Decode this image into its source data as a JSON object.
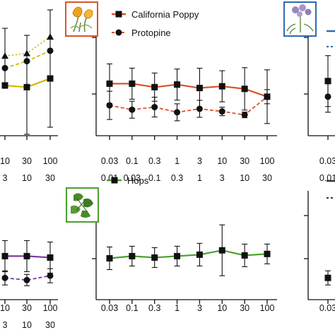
{
  "chart_data": [
    {
      "type": "line",
      "panel": "top-left (cropped)",
      "x_tick_rows": [
        [
          "10",
          "30",
          "100"
        ],
        [
          "3",
          "10",
          "30"
        ]
      ],
      "x": [
        10,
        30,
        100
      ],
      "series": [
        {
          "name": "",
          "color": "#d4b800",
          "style": "solid",
          "marker": "square",
          "values": [
            0.58,
            0.56,
            0.66
          ]
        },
        {
          "name": "",
          "color": "#d4b800",
          "style": "dashed",
          "marker": "circle",
          "values": [
            0.78,
            0.86,
            0.98
          ]
        },
        {
          "name": "",
          "color": "#d4b800",
          "style": "dotted",
          "marker": "triangle",
          "values": [
            0.92,
            0.95,
            1.14
          ]
        }
      ],
      "ylim": [
        0,
        1.5
      ]
    },
    {
      "type": "line",
      "panel": "top-center",
      "legend": [
        "California Poppy",
        "Protopine"
      ],
      "legend_placement": "top",
      "x_tick_rows": [
        [
          "0.03",
          "0.1",
          "0.3",
          "1",
          "3",
          "10",
          "30",
          "100"
        ],
        [
          "0.01",
          "0.03",
          "0.1",
          "0.3",
          "1",
          "3",
          "10",
          "30"
        ]
      ],
      "x": [
        0.03,
        0.1,
        0.3,
        1,
        3,
        10,
        30,
        100
      ],
      "series": [
        {
          "name": "California Poppy",
          "color": "#d9542b",
          "style": "solid",
          "marker": "square",
          "values": [
            0.6,
            0.6,
            0.56,
            0.59,
            0.55,
            0.57,
            0.54,
            0.45
          ]
        },
        {
          "name": "Protopine",
          "color": "#d9542b",
          "style": "dashed",
          "marker": "circle",
          "values": [
            0.35,
            0.3,
            0.33,
            0.27,
            0.31,
            0.28,
            0.24,
            0.45
          ]
        }
      ],
      "ylim": [
        0,
        1.5
      ]
    },
    {
      "type": "line",
      "panel": "top-right (cropped)",
      "x_tick_rows": [
        [
          "0.03"
        ],
        [
          "0.01"
        ]
      ],
      "x": [
        0.03
      ],
      "series": [
        {
          "name": "",
          "color": "#2e6bb0",
          "style": "solid",
          "marker": "square",
          "values": [
            0.63
          ]
        },
        {
          "name": "",
          "color": "#2e6bb0",
          "style": "dashed",
          "marker": "circle",
          "values": [
            0.45
          ]
        }
      ],
      "ylim": [
        0,
        1.5
      ]
    },
    {
      "type": "line",
      "panel": "bottom-left (cropped)",
      "x_tick_rows": [
        [
          "10",
          "30",
          "100"
        ],
        [
          "3",
          "10",
          "30"
        ]
      ],
      "x": [
        10,
        30,
        100
      ],
      "series": [
        {
          "name": "",
          "color": "#7b3aa0",
          "style": "solid",
          "marker": "square",
          "values": [
            0.6,
            0.6,
            0.58
          ]
        },
        {
          "name": "",
          "color": "#7b3aa0",
          "style": "dashed",
          "marker": "circle",
          "values": [
            0.3,
            0.27,
            0.33
          ]
        }
      ],
      "ylim": [
        0,
        1.5
      ]
    },
    {
      "type": "line",
      "panel": "bottom-center",
      "legend": [
        "Hops"
      ],
      "legend_placement": "top",
      "x_tick_rows": [
        [
          "0.03",
          "0.1",
          "0.3",
          "1",
          "3",
          "10",
          "30",
          "100"
        ]
      ],
      "x": [
        0.03,
        0.1,
        0.3,
        1,
        3,
        10,
        30,
        100
      ],
      "series": [
        {
          "name": "Hops",
          "color": "#4aa02c",
          "style": "solid",
          "marker": "square",
          "values": [
            0.57,
            0.6,
            0.58,
            0.6,
            0.62,
            0.68,
            0.61,
            0.63
          ]
        }
      ],
      "ylim": [
        0,
        1.5
      ]
    },
    {
      "type": "line",
      "panel": "bottom-right (cropped)",
      "x_tick_rows": [
        [
          "0.03"
        ]
      ],
      "x": [
        0.03
      ],
      "series": [
        {
          "name": "",
          "color": "#333333",
          "style": "solid",
          "marker": "square",
          "values": [
            0.3
          ]
        }
      ],
      "ylim": [
        0,
        1.5
      ]
    }
  ],
  "colors": {
    "poppy_frame": "#d9542b",
    "valerian_frame": "#2e6bb0",
    "hops_frame": "#4aa02c",
    "axis": "#111111"
  },
  "icons": {
    "top_center": "california-poppy-illustration",
    "top_right": "valerian-illustration",
    "bottom_center": "hops-leaf-illustration"
  }
}
